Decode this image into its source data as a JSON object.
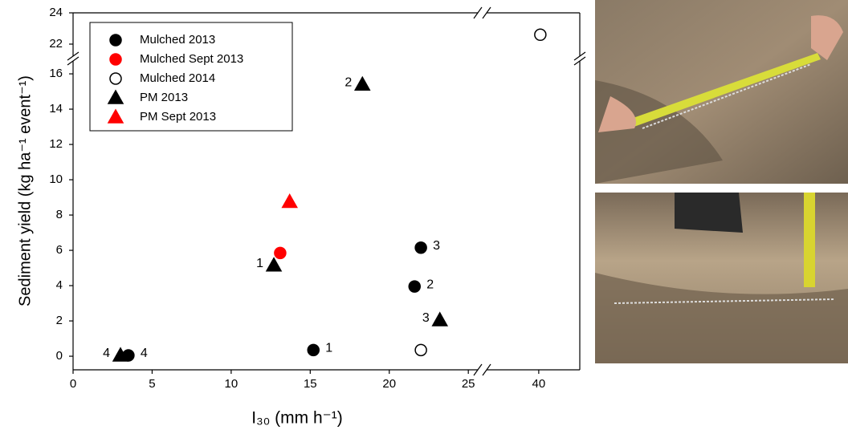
{
  "chart_data": {
    "type": "scatter",
    "xlabel": "I₃₀ (mm h⁻¹)",
    "ylabel": "Sediment yield (kg ha⁻¹ event⁻¹)",
    "x_segments": [
      {
        "xlim": [
          0,
          25.6
        ],
        "xticks": [
          0,
          5,
          10,
          15,
          20,
          25
        ]
      },
      {
        "xlim": [
          36.7,
          42.6
        ],
        "xticks": [
          40
        ]
      }
    ],
    "y_segments": [
      {
        "ylim": [
          -0.77,
          16.73
        ],
        "yticks": [
          0,
          2,
          4,
          6,
          8,
          10,
          12,
          14,
          16
        ]
      },
      {
        "ylim": [
          21.23,
          24
        ],
        "yticks": [
          22,
          24
        ]
      }
    ],
    "legend": "upper left",
    "series": [
      {
        "name": "Mulched 2013",
        "marker": "circle",
        "color": "#000000",
        "filled": true,
        "x": [
          3.5,
          15.2,
          21.6,
          22.0
        ],
        "values": [
          0.05,
          0.35,
          3.95,
          6.15
        ],
        "point_labels": [
          "4",
          "1",
          "2",
          "3"
        ]
      },
      {
        "name": "Mulched Sept 2013",
        "marker": "circle",
        "color": "#ff0000",
        "filled": true,
        "x": [
          13.1
        ],
        "values": [
          5.85
        ]
      },
      {
        "name": "Mulched 2014",
        "marker": "circle",
        "color": "#000000",
        "filled": false,
        "x": [
          22.0,
          40.1
        ],
        "values": [
          0.35,
          22.6
        ]
      },
      {
        "name": "PM 2013",
        "marker": "triangle",
        "color": "#000000",
        "filled": true,
        "x": [
          3.0,
          12.7,
          18.3,
          23.2
        ],
        "values": [
          0.05,
          5.15,
          15.4,
          2.05
        ],
        "point_labels": [
          "4",
          "1",
          "2",
          "3"
        ]
      },
      {
        "name": "PM Sept 2013",
        "marker": "triangle",
        "color": "#ff0000",
        "filled": true,
        "x": [
          13.7
        ],
        "values": [
          8.75
        ]
      }
    ]
  }
}
